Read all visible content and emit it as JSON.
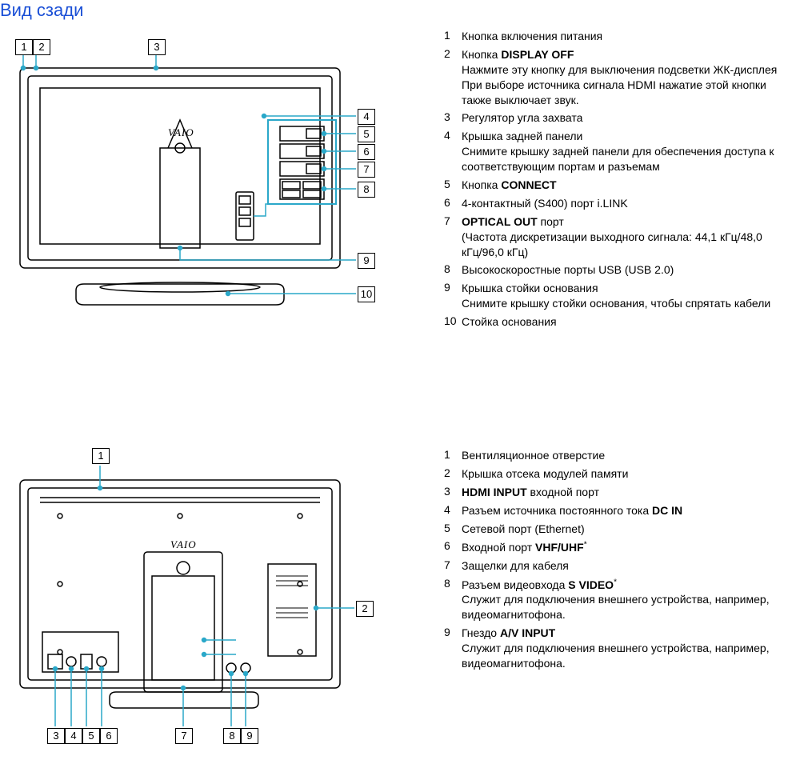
{
  "page_title": "Вид сзади",
  "diagram_top": {
    "type": "technical-line-drawing",
    "stroke": "#000000",
    "callout_stroke": "#2aa8c9",
    "background": "#ffffff",
    "logo_text": "VAIO",
    "callouts": [
      "1",
      "2",
      "3",
      "4",
      "5",
      "6",
      "7",
      "8",
      "9",
      "10"
    ]
  },
  "diagram_bottom": {
    "type": "technical-line-drawing",
    "stroke": "#000000",
    "callout_stroke": "#2aa8c9",
    "background": "#ffffff",
    "logo_text": "VAIO",
    "callouts": [
      "1",
      "2",
      "3",
      "4",
      "5",
      "6",
      "7",
      "8",
      "9"
    ]
  },
  "legend_top": [
    {
      "n": "1",
      "title": "Кнопка включения питания"
    },
    {
      "n": "2",
      "title_pre": "Кнопка ",
      "title_b": "DISPLAY OFF",
      "desc": "Нажмите эту кнопку для выключения подсветки ЖК-дисплея При выборе источника сигнала HDMI нажатие этой кнопки также выключает звук."
    },
    {
      "n": "3",
      "title": "Регулятор угла захвата"
    },
    {
      "n": "4",
      "title": "Крышка задней панели",
      "desc": "Снимите крышку задней панели для обеспечения доступа к соответствующим портам и разъемам"
    },
    {
      "n": "5",
      "title_pre": "Кнопка ",
      "title_b": "CONNECT"
    },
    {
      "n": "6",
      "title": "4-контактный (S400) порт i.LINK"
    },
    {
      "n": "7",
      "title_b": "OPTICAL OUT",
      "title_post": " порт",
      "desc": "(Частота дискретизации выходного сигнала: 44,1 кГц/48,0 кГц/96,0 кГц)"
    },
    {
      "n": "8",
      "title": "Высокоскоростные порты USB (USB 2.0)"
    },
    {
      "n": "9",
      "title": "Крышка стойки основания",
      "desc": "Снимите крышку стойки основания, чтобы спрятать кабели"
    },
    {
      "n": "10",
      "title": "Стойка основания"
    }
  ],
  "legend_bottom": [
    {
      "n": "1",
      "title": "Вентиляционное отверстие"
    },
    {
      "n": "2",
      "title": "Крышка отсека модулей памяти"
    },
    {
      "n": "3",
      "title_b": "HDMI INPUT",
      "title_post": " входной порт"
    },
    {
      "n": "4",
      "title_pre": "Разъем источника постоянного тока ",
      "title_b": "DC IN"
    },
    {
      "n": "5",
      "title": "Сетевой порт (Ethernet)"
    },
    {
      "n": "6",
      "title_pre": "Входной порт ",
      "title_b": "VHF/UHF",
      "sup": "*"
    },
    {
      "n": "7",
      "title": "Защелки для кабеля"
    },
    {
      "n": "8",
      "title_pre": "Разъем видеовхода ",
      "title_b": "S VIDEO",
      "sup": "*",
      "desc": "Служит для подключения внешнего устройства, например, видеомагнитофона."
    },
    {
      "n": "9",
      "title_pre": "Гнездо ",
      "title_b": "A/V INPUT",
      "desc": "Служит для подключения внешнего устройства, например, видеомагнитофона."
    }
  ],
  "colors": {
    "title": "#1a4fd6",
    "text": "#000000",
    "callout": "#2aa8c9",
    "background": "#ffffff"
  },
  "fonts": {
    "body_family": "Verdana",
    "body_size_pt": 10,
    "title_size_pt": 16
  }
}
